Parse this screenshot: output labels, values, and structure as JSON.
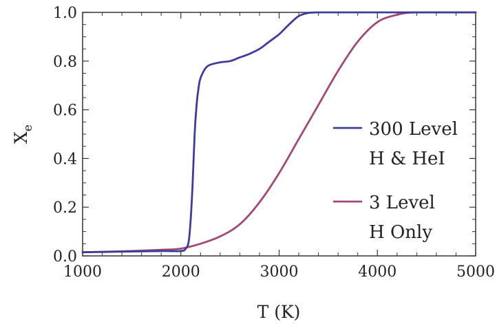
{
  "chart_data": {
    "type": "line",
    "title": "",
    "xlabel": "T (K)",
    "ylabel": "X",
    "ylabel_subscript": "e",
    "xlim": [
      1000,
      5000
    ],
    "ylim": [
      0.0,
      1.0
    ],
    "xticks": [
      1000,
      2000,
      3000,
      4000,
      5000
    ],
    "xtick_labels": [
      "1000",
      "2000",
      "3000",
      "4000",
      "5000"
    ],
    "yticks": [
      0.0,
      0.2,
      0.4,
      0.6,
      0.8,
      1.0
    ],
    "ytick_labels": [
      "0.0",
      "0.2",
      "0.4",
      "0.6",
      "0.8",
      "1.0"
    ],
    "grid": false,
    "legend_position": "right",
    "series": [
      {
        "name": [
          "300 Level",
          "H & HeI"
        ],
        "color": "#3d3d99",
        "x": [
          1000,
          1500,
          1800,
          2000,
          2050,
          2080,
          2100,
          2120,
          2140,
          2160,
          2180,
          2200,
          2250,
          2300,
          2400,
          2500,
          2600,
          2700,
          2800,
          2900,
          3000,
          3100,
          3200,
          3300,
          3400,
          3600,
          4000,
          5000
        ],
        "y": [
          0.015,
          0.018,
          0.02,
          0.02,
          0.03,
          0.06,
          0.15,
          0.3,
          0.5,
          0.62,
          0.69,
          0.73,
          0.77,
          0.785,
          0.795,
          0.8,
          0.815,
          0.83,
          0.85,
          0.88,
          0.91,
          0.95,
          0.985,
          0.998,
          1.0,
          1.0,
          1.0,
          1.0
        ]
      },
      {
        "name": [
          "3 Level",
          "H Only"
        ],
        "color": "#a04878",
        "x": [
          1000,
          1500,
          1800,
          2000,
          2200,
          2400,
          2600,
          2800,
          3000,
          3200,
          3400,
          3600,
          3800,
          4000,
          4200,
          4400,
          5000
        ],
        "y": [
          0.015,
          0.02,
          0.025,
          0.03,
          0.05,
          0.08,
          0.13,
          0.22,
          0.34,
          0.48,
          0.62,
          0.76,
          0.88,
          0.96,
          0.99,
          1.0,
          1.0
        ]
      }
    ]
  }
}
